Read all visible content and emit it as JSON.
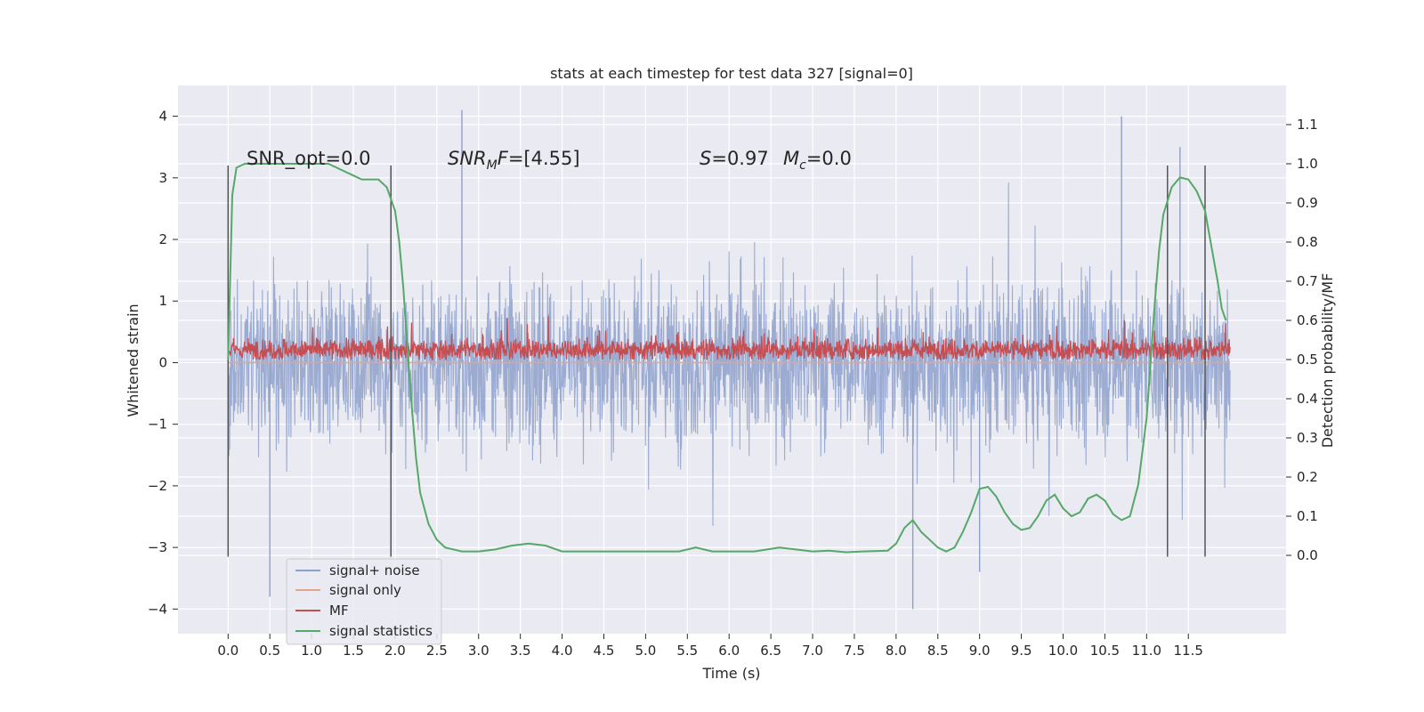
{
  "chart_data": {
    "type": "line",
    "title": "stats at each timestep for test data 327 [signal=0]",
    "xlabel": "Time (s)",
    "ylabel": "Whitened strain",
    "y2label": "Detection probability/MF",
    "xlim": [
      -0.6,
      12.67
    ],
    "ylim": [
      -4.4,
      4.5
    ],
    "y2lim": [
      -0.2,
      1.2
    ],
    "x_ticks": [
      0.0,
      0.5,
      1.0,
      1.5,
      2.0,
      2.5,
      3.0,
      3.5,
      4.0,
      4.5,
      5.0,
      5.5,
      6.0,
      6.5,
      7.0,
      7.5,
      8.0,
      8.5,
      9.0,
      9.5,
      10.0,
      10.5,
      11.0,
      11.5
    ],
    "x_tick_labels": [
      "0.0",
      "0.5",
      "1.0",
      "1.5",
      "2.0",
      "2.5",
      "3.0",
      "3.5",
      "4.0",
      "4.5",
      "5.0",
      "5.5",
      "6.0",
      "6.5",
      "7.0",
      "7.5",
      "8.0",
      "8.5",
      "9.0",
      "9.5",
      "10.0",
      "10.5",
      "11.0",
      "11.5"
    ],
    "y_ticks": [
      -4,
      -3,
      -2,
      -1,
      0,
      1,
      2,
      3,
      4
    ],
    "y_tick_labels": [
      "−4",
      "−3",
      "−2",
      "−1",
      "0",
      "1",
      "2",
      "3",
      "4"
    ],
    "y2_ticks": [
      0.0,
      0.1,
      0.2,
      0.3,
      0.4,
      0.5,
      0.6,
      0.7,
      0.8,
      0.9,
      1.0,
      1.1
    ],
    "y2_tick_labels": [
      "0.0",
      "0.1",
      "0.2",
      "0.3",
      "0.4",
      "0.5",
      "0.6",
      "0.7",
      "0.8",
      "0.9",
      "1.0",
      "1.1"
    ],
    "grid": true,
    "legend_position": "lower-left",
    "annotations": {
      "snr_opt": "SNR_opt=0.0",
      "snr_mf_label": "SNR",
      "snr_mf_sub": "M",
      "snr_mf_tail": "F",
      "snr_mf_value": "=[4.55]",
      "s_label": "S",
      "s_value": "=0.97",
      "mc_label": "M",
      "mc_sub": "c",
      "mc_value": "=0.0"
    },
    "vertical_markers": [
      {
        "x": 0.0,
        "y_range": [
          -3.15,
          3.2
        ]
      },
      {
        "x": 1.95,
        "y_range": [
          -3.15,
          3.2
        ]
      },
      {
        "x": 11.25,
        "y_range": [
          -3.15,
          3.2
        ]
      },
      {
        "x": 11.7,
        "y_range": [
          -3.15,
          3.2
        ]
      }
    ],
    "series": [
      {
        "name": "signal+ noise",
        "axis": "left",
        "color": "#8da0cb",
        "x_range": [
          0.0,
          12.0
        ],
        "typical_band": [
          -1.3,
          1.3
        ],
        "peak_extremes": [
          {
            "x": 0.5,
            "y": -3.8
          },
          {
            "x": 2.8,
            "y": 4.1
          },
          {
            "x": 8.2,
            "y": -4.0
          },
          {
            "x": 10.7,
            "y": 4.0
          },
          {
            "x": 9.0,
            "y": -3.4
          },
          {
            "x": 11.4,
            "y": 3.5
          }
        ]
      },
      {
        "name": "signal only",
        "axis": "left",
        "color": "#e8a48b",
        "x": [
          0.0,
          12.0
        ],
        "y": [
          0.0,
          0.0
        ]
      },
      {
        "name": "MF",
        "axis": "right",
        "color": "#c44e52",
        "x_range": [
          0.0,
          12.0
        ],
        "typical_band": [
          0.5,
          0.6
        ],
        "peak_max": 0.63
      },
      {
        "name": "signal statistics",
        "axis": "right",
        "color": "#55a868",
        "x": [
          0.0,
          0.05,
          0.1,
          0.2,
          0.4,
          0.8,
          1.0,
          1.2,
          1.3,
          1.5,
          1.6,
          1.7,
          1.8,
          1.9,
          2.0,
          2.05,
          2.1,
          2.15,
          2.2,
          2.25,
          2.3,
          2.4,
          2.5,
          2.6,
          2.8,
          3.0,
          3.2,
          3.4,
          3.6,
          3.8,
          4.0,
          4.3,
          4.5,
          4.8,
          5.0,
          5.2,
          5.4,
          5.6,
          5.8,
          6.0,
          6.3,
          6.6,
          6.8,
          7.0,
          7.2,
          7.4,
          7.6,
          7.9,
          8.0,
          8.1,
          8.2,
          8.3,
          8.5,
          8.6,
          8.7,
          8.8,
          8.9,
          9.0,
          9.1,
          9.2,
          9.3,
          9.4,
          9.5,
          9.6,
          9.7,
          9.8,
          9.9,
          10.0,
          10.1,
          10.2,
          10.3,
          10.4,
          10.5,
          10.6,
          10.7,
          10.8,
          10.9,
          11.0,
          11.05,
          11.1,
          11.15,
          11.2,
          11.3,
          11.4,
          11.5,
          11.6,
          11.7,
          11.8,
          11.85,
          11.9,
          11.95
        ],
        "y": [
          0.5,
          0.92,
          0.99,
          1.0,
          1.0,
          1.0,
          1.0,
          1.0,
          0.99,
          0.97,
          0.96,
          0.96,
          0.96,
          0.94,
          0.88,
          0.8,
          0.68,
          0.52,
          0.38,
          0.25,
          0.16,
          0.08,
          0.04,
          0.02,
          0.01,
          0.01,
          0.015,
          0.025,
          0.03,
          0.025,
          0.01,
          0.01,
          0.01,
          0.01,
          0.01,
          0.01,
          0.01,
          0.02,
          0.01,
          0.01,
          0.01,
          0.02,
          0.015,
          0.01,
          0.012,
          0.008,
          0.01,
          0.012,
          0.03,
          0.07,
          0.09,
          0.06,
          0.02,
          0.01,
          0.02,
          0.06,
          0.11,
          0.17,
          0.175,
          0.15,
          0.11,
          0.08,
          0.065,
          0.07,
          0.1,
          0.14,
          0.155,
          0.12,
          0.1,
          0.11,
          0.145,
          0.155,
          0.14,
          0.105,
          0.09,
          0.1,
          0.18,
          0.35,
          0.5,
          0.65,
          0.78,
          0.87,
          0.94,
          0.965,
          0.96,
          0.93,
          0.88,
          0.76,
          0.7,
          0.63,
          0.6
        ]
      }
    ]
  }
}
